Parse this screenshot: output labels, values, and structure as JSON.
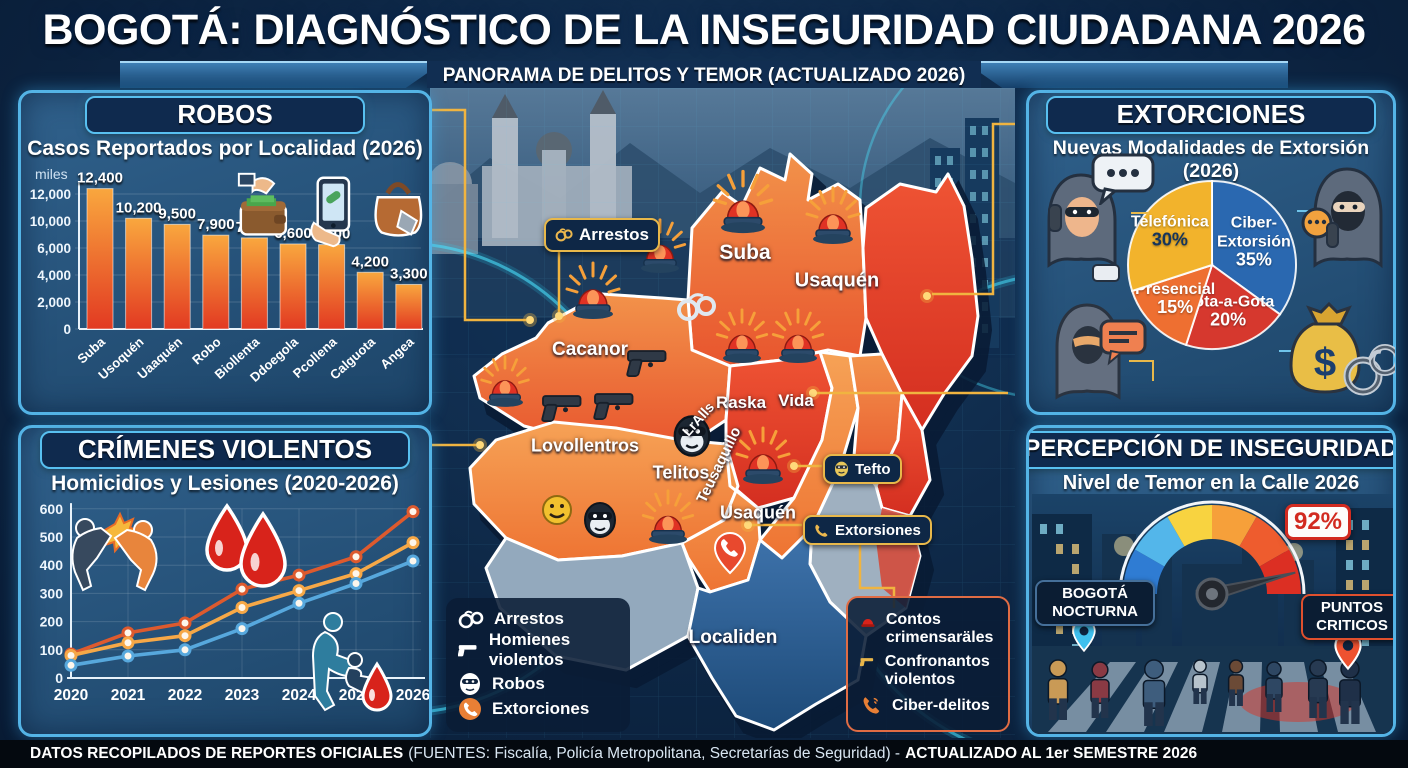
{
  "header": {
    "title": "BOGOTÁ: DIAGNÓSTICO DE LA INSEGURIDAD CIUDADANA 2026",
    "subtitle": "PANORAMA DE DELITOS Y TEMOR (ACTUALIZADO 2026)"
  },
  "panels": {
    "robos": {
      "title": "ROBOS",
      "subtitle": "Casos Reportados por Localidad (2026)",
      "unit": "miles"
    },
    "crimenes": {
      "title": "CRÍMENES VIOLENTOS",
      "subtitle": "Homicidios y Lesiones (2020-2026)"
    },
    "extorciones": {
      "title": "EXTORCIONES",
      "subtitle": "Nuevas Modalidades de Extorsión (2026)"
    },
    "percepcion": {
      "title": "PERCEPCIÓN DE INSEGURIDAD",
      "subtitle": "Nivel de Temor en la Calle 2026",
      "gauge_label": "92%",
      "label_left": "BOGOTÁ NOCTURNA",
      "label_right": "PUNTOS CRITICOS"
    }
  },
  "map": {
    "regions": [
      "Suba",
      "Usaquén",
      "Cacanor",
      "Lovollentros",
      "Telitos",
      "LrAlls",
      "Teusaquillo",
      "Raska",
      "Vida",
      "Usaquén",
      "Localiden"
    ],
    "callouts": {
      "arrestos": "Arrestos",
      "tefto": "Tefto",
      "extorsiones": "Extorsiones"
    }
  },
  "legend_left": {
    "items": [
      {
        "icon": "handcuffs-icon",
        "label": "Arrestos"
      },
      {
        "icon": "gun-icon",
        "label": "Homienes violentos"
      },
      {
        "icon": "mask-icon",
        "label": "Robos"
      },
      {
        "icon": "phone-icon",
        "label": "Extorciones"
      }
    ]
  },
  "legend_right": {
    "items": [
      {
        "icon": "siren-icon",
        "label": "Contos crimensaräles"
      },
      {
        "icon": "gun-icon",
        "label": "Confronantos violentos"
      },
      {
        "icon": "phone-icon",
        "label": "Ciber-delitos"
      }
    ]
  },
  "money_bag_symbol": "$",
  "footer": {
    "bold1": "DATOS RECOPILADOS DE REPORTES OFICIALES",
    "normal": "(FUENTES: Fiscalía, Policía Metropolitana, Secretarías de Seguridad) -",
    "bold2": "ACTUALIZADO AL 1er SEMESTRE 2026"
  },
  "chart_data": [
    {
      "type": "bar",
      "title": "Casos Reportados por Localidad (2026)",
      "ylabel": "miles",
      "categories": [
        "Suba",
        "Usoquén",
        "Uaaquén",
        "Robo",
        "Biollenta",
        "Ddoegola",
        "Pcollena",
        "Calguota",
        "Angea"
      ],
      "values": [
        12400,
        10200,
        9500,
        7900,
        7500,
        6600,
        6500,
        4200,
        3300
      ],
      "value_labels": [
        "12,400",
        "10,200",
        "9,500",
        "7,900",
        "7,500",
        "6,600",
        "6,500",
        "4,200",
        "3,300"
      ],
      "ytick_values": [
        0,
        2000,
        4000,
        6000,
        10000,
        12000
      ],
      "ytick_labels": [
        "0",
        "2,000",
        "4,000",
        "6,000",
        "10,000",
        "12,000"
      ],
      "bar_color_top": "#f9a73e",
      "bar_color_bottom": "#e23a22"
    },
    {
      "type": "line",
      "title": "Homicidios y Lesiones (2020-2026)",
      "x": [
        2020,
        2021,
        2022,
        2023,
        2024,
        2025,
        2026
      ],
      "xtick_labels": [
        "2020",
        "2021",
        "2022",
        "2023",
        "2024",
        "2025",
        "2026"
      ],
      "ytick_values": [
        0,
        100,
        200,
        300,
        400,
        500,
        600
      ],
      "ytick_labels": [
        "0",
        "100",
        "200",
        "300",
        "400",
        "500",
        "600"
      ],
      "ylim": [
        0,
        600
      ],
      "grid": true,
      "legend": "none",
      "series": [
        {
          "name": "serie_roja",
          "color": "#dd5a2e",
          "values": [
            85,
            160,
            195,
            315,
            365,
            430,
            590
          ]
        },
        {
          "name": "serie_naranja",
          "color": "#f6a847",
          "values": [
            80,
            125,
            150,
            250,
            310,
            370,
            480
          ]
        },
        {
          "name": "serie_azul",
          "color": "#57a8dd",
          "values": [
            45,
            78,
            100,
            175,
            265,
            335,
            415
          ]
        }
      ]
    },
    {
      "type": "pie",
      "title": "Nuevas Modalidades de Extorsión (2026)",
      "slices": [
        {
          "label": "Ciber-Extorsión",
          "pct": 35,
          "color": "#2a68b0",
          "lines": [
            "Ciber-",
            "Extorsión",
            "35%"
          ],
          "pct_color": "#ffffff"
        },
        {
          "label": "Gota-a-Gota",
          "pct": 20,
          "color": "#d6382e",
          "lines": [
            "Gota-a-Gota",
            "20%"
          ],
          "pct_color": "#ffffff"
        },
        {
          "label": "Presencial",
          "pct": 15,
          "color": "#ee6f31",
          "lines": [
            "Presencial",
            "15%"
          ],
          "pct_color": "#ffffff"
        },
        {
          "label": "Telefónica",
          "pct": 30,
          "color": "#f2b32c",
          "lines": [
            "Telefónica",
            "30%"
          ],
          "pct_color": "#16355c"
        }
      ]
    },
    {
      "type": "gauge",
      "title": "Nivel de Temor en la Calle 2026",
      "value": 92,
      "min": 0,
      "max": 100,
      "display": "92%",
      "segments": [
        "#2f7cd3",
        "#53b6ea",
        "#f8d340",
        "#f6a03a",
        "#ee5c2e",
        "#dc2f23"
      ]
    }
  ]
}
